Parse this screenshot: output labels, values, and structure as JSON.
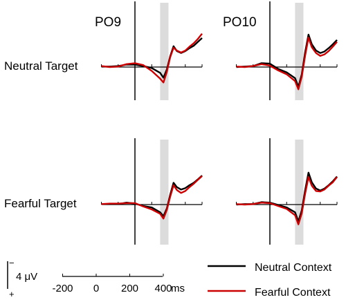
{
  "chart_data": {
    "type": "line",
    "xunit": "ms",
    "time_axis": {
      "ticks": [
        -200,
        0,
        200,
        400
      ],
      "tick_labels": [
        "-200",
        "0",
        "200",
        "400"
      ],
      "unit_label": "ms"
    },
    "shaded_window_ms": [
      150,
      200
    ],
    "voltage_scale": {
      "label": "4 μV",
      "minus_sign": "−",
      "plus_sign": "+",
      "value_uv": 4
    },
    "columns": [
      "PO9",
      "PO10"
    ],
    "rows": [
      "Neutral Target",
      "Fearful Target"
    ],
    "legend": [
      {
        "label": "Neutral Context",
        "color": "#000000"
      },
      {
        "label": "Fearful Context",
        "color": "#cc0000"
      }
    ],
    "x": [
      -200,
      -150,
      -100,
      -50,
      0,
      50,
      100,
      150,
      170,
      190,
      210,
      230,
      250,
      275,
      300,
      325,
      350,
      375,
      400
    ],
    "panels": [
      {
        "electrode": "PO9",
        "target": "Neutral Target",
        "series": [
          {
            "name": "Neutral Context",
            "values": [
              0.1,
              0.1,
              0.2,
              0.5,
              0.5,
              0.2,
              -0.2,
              -1.2,
              -2.2,
              -0.5,
              2.2,
              4.3,
              3.3,
              2.9,
              3.3,
              3.9,
              4.4,
              5.2,
              6.0
            ]
          },
          {
            "name": "Fearful Context",
            "values": [
              0.2,
              0.0,
              0.1,
              0.6,
              0.8,
              0.4,
              -0.8,
              -2.4,
              -3.2,
              -1.0,
              2.0,
              4.0,
              3.4,
              3.0,
              3.4,
              4.2,
              4.9,
              5.8,
              6.9
            ]
          }
        ]
      },
      {
        "electrode": "PO10",
        "target": "Neutral Target",
        "series": [
          {
            "name": "Neutral Context",
            "values": [
              0.0,
              0.1,
              0.2,
              0.8,
              0.7,
              -0.4,
              -1.1,
              -2.3,
              -4.1,
              -1.5,
              3.0,
              6.7,
              4.7,
              3.4,
              2.9,
              3.2,
              3.9,
              4.7,
              5.6
            ]
          },
          {
            "name": "Fearful Context",
            "values": [
              0.1,
              0.0,
              0.2,
              0.6,
              0.3,
              -0.7,
              -1.5,
              -2.9,
              -4.6,
              -2.0,
              2.3,
              6.1,
              4.1,
              2.9,
              2.3,
              2.6,
              3.3,
              4.2,
              5.2
            ]
          }
        ]
      },
      {
        "electrode": "PO9",
        "target": "Fearful Target",
        "series": [
          {
            "name": "Neutral Context",
            "values": [
              0.1,
              0.1,
              0.1,
              0.4,
              0.2,
              -0.3,
              -0.6,
              -1.6,
              -2.4,
              -0.8,
              2.0,
              4.5,
              3.6,
              3.1,
              3.4,
              4.0,
              4.5,
              5.2,
              6.0
            ]
          },
          {
            "name": "Fearful Context",
            "values": [
              0.1,
              0.2,
              0.2,
              0.3,
              0.3,
              -0.4,
              -1.0,
              -1.9,
              -2.9,
              -1.1,
              1.6,
              4.0,
              3.0,
              2.4,
              2.8,
              3.6,
              4.3,
              5.1,
              5.9
            ]
          }
        ]
      },
      {
        "electrode": "PO10",
        "target": "Fearful Target",
        "series": [
          {
            "name": "Neutral Context",
            "values": [
              0.0,
              0.1,
              0.1,
              0.5,
              0.4,
              -0.1,
              -0.6,
              -1.6,
              -3.5,
              -1.2,
              2.9,
              6.6,
              4.6,
              3.3,
              2.9,
              3.3,
              4.0,
              4.8,
              5.8
            ]
          },
          {
            "name": "Fearful Context",
            "values": [
              0.1,
              0.0,
              0.1,
              0.4,
              0.3,
              -0.3,
              -0.9,
              -2.2,
              -4.1,
              -1.8,
              2.2,
              5.7,
              3.9,
              2.8,
              2.7,
              3.1,
              3.9,
              4.6,
              5.7
            ]
          }
        ]
      }
    ]
  }
}
